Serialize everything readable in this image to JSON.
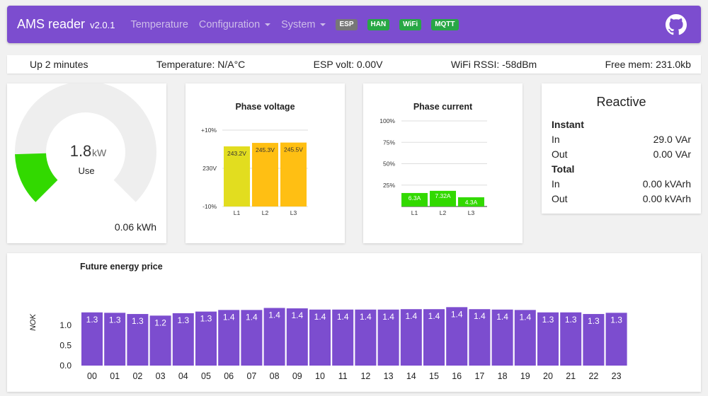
{
  "navbar": {
    "brand": "AMS reader",
    "version": "v2.0.1",
    "menu": [
      {
        "label": "Temperature",
        "dropdown": false
      },
      {
        "label": "Configuration",
        "dropdown": true
      },
      {
        "label": "System",
        "dropdown": true
      }
    ],
    "badges": [
      {
        "label": "ESP",
        "color": "grey"
      },
      {
        "label": "HAN",
        "color": "green"
      },
      {
        "label": "WiFi",
        "color": "green"
      },
      {
        "label": "MQTT",
        "color": "green"
      }
    ],
    "github_icon": "github-icon"
  },
  "status": {
    "uptime": "Up 2 minutes",
    "temperature": "Temperature: N/A°C",
    "esp_volt": "ESP volt: 0.00V",
    "wifi_rssi": "WiFi RSSI: -58dBm",
    "free_mem": "Free mem: 231.0kb"
  },
  "gauge": {
    "value": "1.8",
    "unit": "kW",
    "label": "Use",
    "energy": "0.06 kWh",
    "fill_fraction": 0.16,
    "fill_color": "#32d900",
    "track_color": "#eeeeee"
  },
  "phase_voltage": {
    "title": "Phase voltage",
    "y_ticks": [
      "+10%",
      "230V",
      "-10%"
    ],
    "categories": [
      "L1",
      "L2",
      "L3"
    ],
    "values": [
      243.2,
      245.3,
      245.5
    ],
    "labels": [
      "243.2V",
      "245.3V",
      "245.5V"
    ],
    "colors": [
      "#e2dd1f",
      "#ffbf13",
      "#ffbf13"
    ],
    "min": 207,
    "max": 253
  },
  "phase_current": {
    "title": "Phase current",
    "y_ticks": [
      "100%",
      "75%",
      "50%",
      "25%"
    ],
    "categories": [
      "L1",
      "L2",
      "L3"
    ],
    "values": [
      6.3,
      7.32,
      4.3
    ],
    "labels": [
      "6.3A",
      "7.32A",
      "4.3A"
    ],
    "color": "#32d900",
    "max": 40
  },
  "reactive": {
    "title": "Reactive",
    "instant": {
      "heading": "Instant",
      "in_label": "In",
      "in_value": "29.0 VAr",
      "out_label": "Out",
      "out_value": "0.00 VAr"
    },
    "total": {
      "heading": "Total",
      "in_label": "In",
      "in_value": "0.00 kVArh",
      "out_label": "Out",
      "out_value": "0.00 kVArh"
    }
  },
  "chart_data": {
    "type": "bar",
    "title": "Future energy price",
    "ylabel": "NOK",
    "categories": [
      "00",
      "01",
      "02",
      "03",
      "04",
      "05",
      "06",
      "07",
      "08",
      "09",
      "10",
      "11",
      "12",
      "13",
      "14",
      "15",
      "16",
      "17",
      "18",
      "19",
      "20",
      "21",
      "22",
      "23"
    ],
    "values": [
      1.32,
      1.31,
      1.28,
      1.24,
      1.3,
      1.34,
      1.38,
      1.38,
      1.43,
      1.42,
      1.39,
      1.39,
      1.39,
      1.39,
      1.4,
      1.4,
      1.45,
      1.4,
      1.39,
      1.38,
      1.32,
      1.32,
      1.28,
      1.31
    ],
    "labels": [
      "1.3",
      "1.3",
      "1.3",
      "1.2",
      "1.3",
      "1.3",
      "1.4",
      "1.4",
      "1.4",
      "1.4",
      "1.4",
      "1.4",
      "1.4",
      "1.4",
      "1.4",
      "1.4",
      "1.4",
      "1.4",
      "1.4",
      "1.4",
      "1.3",
      "1.3",
      "1.3",
      "1.3"
    ],
    "y_ticks": [
      "0.0",
      "0.5",
      "1.0"
    ],
    "ylim": [
      0,
      1.45
    ],
    "color": "#7c4dcf"
  }
}
